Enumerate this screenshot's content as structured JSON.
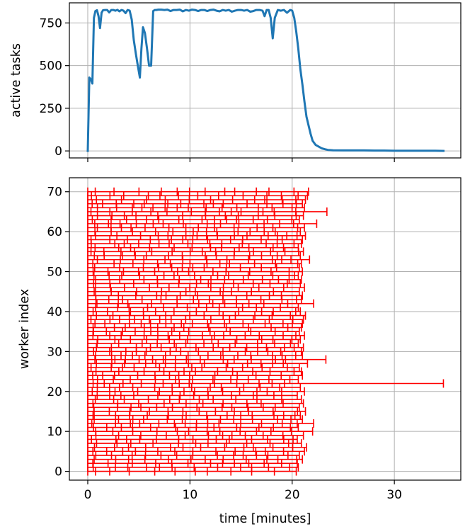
{
  "chart_data": [
    {
      "type": "line",
      "ylabel": "active tasks",
      "xlim": [
        -1.8,
        36.5
      ],
      "ylim": [
        -41,
        868
      ],
      "xticks": [
        0,
        10,
        20,
        30
      ],
      "yticks": [
        0,
        250,
        500,
        750
      ],
      "ytick_labels": [
        "0",
        "250",
        "500",
        "750"
      ],
      "grid": true,
      "color": "#1f77b4",
      "series": [
        {
          "x": [
            0.0,
            0.15,
            0.3,
            0.45,
            0.6,
            0.75,
            0.9,
            1.05,
            1.2,
            1.35,
            1.5,
            1.7,
            1.9,
            2.1,
            2.3,
            2.5,
            2.7,
            2.9,
            3.1,
            3.3,
            3.5,
            3.7,
            3.9,
            4.1,
            4.3,
            4.5,
            4.7,
            4.9,
            5.1,
            5.25,
            5.4,
            5.6,
            5.8,
            6.0,
            6.2,
            6.4,
            6.55,
            6.7,
            6.9,
            7.2,
            7.5,
            7.8,
            8.1,
            8.4,
            8.7,
            9.0,
            9.3,
            9.6,
            9.9,
            10.2,
            10.5,
            10.8,
            11.1,
            11.4,
            11.7,
            12.0,
            12.3,
            12.6,
            12.9,
            13.2,
            13.5,
            13.8,
            14.1,
            14.4,
            14.7,
            15.0,
            15.3,
            15.6,
            15.9,
            16.2,
            16.5,
            16.8,
            17.1,
            17.3,
            17.5,
            17.7,
            17.9,
            18.1,
            18.3,
            18.6,
            18.9,
            19.2,
            19.5,
            19.8,
            20.0,
            20.2,
            20.4,
            20.6,
            20.8,
            21.0,
            21.2,
            21.4,
            21.6,
            21.8,
            22.0,
            22.3,
            22.6,
            22.9,
            23.2,
            23.5,
            24.0,
            25.0,
            26.0,
            27.0,
            28.0,
            29.0,
            30.0,
            31.0,
            32.0,
            33.0,
            34.0,
            34.8
          ],
          "y": [
            0,
            430,
            420,
            395,
            780,
            820,
            825,
            790,
            720,
            810,
            825,
            826,
            826,
            812,
            826,
            826,
            822,
            827,
            818,
            826,
            822,
            808,
            826,
            822,
            770,
            650,
            570,
            500,
            430,
            600,
            725,
            690,
            600,
            500,
            500,
            820,
            826,
            826,
            828,
            828,
            826,
            828,
            820,
            826,
            826,
            828,
            818,
            826,
            822,
            828,
            826,
            820,
            826,
            826,
            820,
            826,
            828,
            822,
            818,
            826,
            822,
            826,
            816,
            822,
            826,
            826,
            822,
            826,
            816,
            820,
            826,
            826,
            822,
            790,
            826,
            826,
            780,
            660,
            780,
            826,
            822,
            826,
            810,
            826,
            822,
            780,
            700,
            600,
            480,
            390,
            290,
            200,
            150,
            100,
            60,
            35,
            25,
            15,
            10,
            6,
            4,
            3,
            3,
            3,
            2,
            2,
            1,
            1,
            1,
            1,
            1,
            0
          ]
        }
      ]
    },
    {
      "type": "gantt",
      "xlabel": "time [minutes]",
      "ylabel": "worker index",
      "xlim": [
        -1.8,
        36.5
      ],
      "ylim": [
        -2.2,
        73.5
      ],
      "xticks": [
        0,
        10,
        20,
        30
      ],
      "xtick_labels": [
        "0",
        "10",
        "20",
        "30"
      ],
      "yticks": [
        0,
        10,
        20,
        30,
        40,
        50,
        60,
        70
      ],
      "ytick_labels": [
        "0",
        "10",
        "20",
        "30",
        "40",
        "50",
        "60",
        "70"
      ],
      "grid": true,
      "color": "#ff0000",
      "worker_end_times": [
        20.4,
        20.6,
        20.5,
        21.0,
        20.7,
        21.2,
        21.4,
        20.9,
        20.5,
        21.1,
        22.0,
        20.6,
        22.1,
        21.0,
        20.8,
        21.3,
        20.7,
        21.1,
        20.9,
        20.5,
        21.2,
        20.8,
        34.8,
        20.6,
        21.0,
        20.9,
        20.7,
        21.5,
        23.3,
        21.0,
        20.9,
        21.1,
        20.6,
        20.8,
        21.2,
        20.7,
        20.9,
        21.0,
        21.1,
        21.3,
        20.8,
        20.6,
        22.1,
        20.9,
        21.0,
        20.7,
        21.2,
        20.8,
        20.9,
        20.6,
        21.0,
        20.7,
        20.9,
        21.7,
        20.8,
        21.1,
        20.6,
        20.9,
        21.0,
        21.3,
        20.8,
        21.2,
        22.4,
        20.7,
        21.1,
        23.4,
        21.2,
        21.0,
        21.3,
        21.5,
        21.6
      ]
    }
  ]
}
